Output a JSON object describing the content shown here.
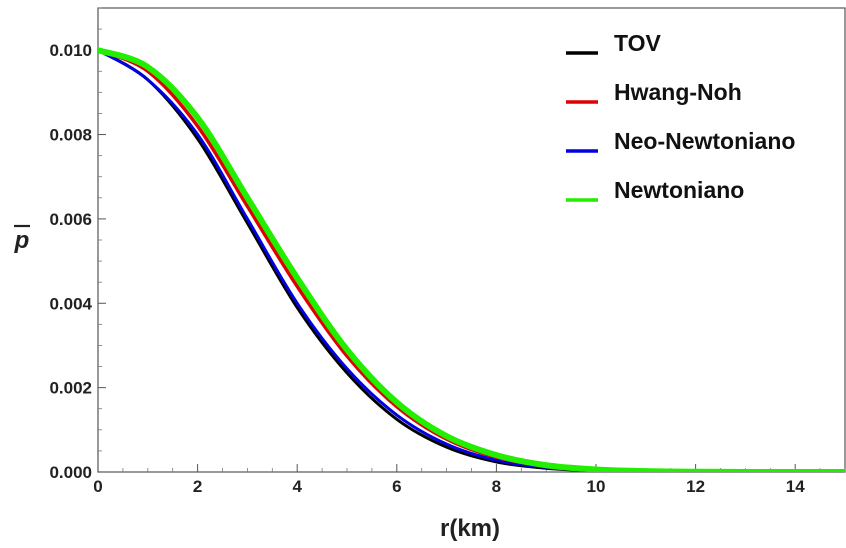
{
  "chart_data": {
    "type": "line",
    "title": "",
    "xlabel": "r(km)",
    "ylabel": "p",
    "ylabel_overbar": true,
    "xlim": [
      0,
      15
    ],
    "ylim": [
      0,
      0.011
    ],
    "x_ticks": [
      0,
      2,
      4,
      6,
      8,
      10,
      12,
      14
    ],
    "x_tick_labels": [
      "0",
      "2",
      "4",
      "6",
      "8",
      "10",
      "12",
      "14"
    ],
    "y_ticks": [
      0.0,
      0.002,
      0.004,
      0.006,
      0.008,
      0.01
    ],
    "y_tick_labels": [
      "0.000",
      "0.002",
      "0.004",
      "0.006",
      "0.008",
      "0.010"
    ],
    "grid": false,
    "legend_position": "top-right",
    "series": [
      {
        "name": "TOV",
        "color": "#000000",
        "x": [
          0,
          1,
          2,
          3,
          4,
          5,
          6,
          7,
          8,
          9,
          10,
          11,
          12,
          13,
          14,
          15
        ],
        "y": [
          0.01,
          0.0093,
          0.0079,
          0.0059,
          0.0039,
          0.00235,
          0.00125,
          0.00059,
          0.00024,
          9e-05,
          3e-05,
          1e-05,
          0.0,
          0.0,
          0.0,
          0.0
        ]
      },
      {
        "name": "Hwang-Noh",
        "color": "#e00000",
        "x": [
          0,
          1,
          2,
          3,
          4,
          5,
          6,
          7,
          8,
          9,
          10,
          11,
          12,
          13,
          14,
          15
        ],
        "y": [
          0.01,
          0.0095,
          0.0082,
          0.0063,
          0.0044,
          0.00275,
          0.00155,
          0.00078,
          0.00035,
          0.00014,
          5e-05,
          1.5e-05,
          4e-06,
          0.0,
          0.0,
          0.0
        ]
      },
      {
        "name": "Neo-Newtoniano",
        "color": "#0000e0",
        "x": [
          0,
          1,
          2,
          3,
          4,
          5,
          6,
          7,
          8,
          9,
          10,
          11,
          12,
          13,
          14,
          15
        ],
        "y": [
          0.01,
          0.0093,
          0.008,
          0.006,
          0.004,
          0.00245,
          0.00135,
          0.00066,
          0.00028,
          0.00011,
          4e-05,
          1.2e-05,
          3e-06,
          0.0,
          0.0,
          0.0
        ]
      },
      {
        "name": "Newtoniano",
        "color": "#22ee00",
        "x": [
          0,
          1,
          2,
          3,
          4,
          5,
          6,
          7,
          8,
          9,
          10,
          11,
          12,
          13,
          14,
          15
        ],
        "y": [
          0.01,
          0.0096,
          0.0084,
          0.0065,
          0.0046,
          0.0029,
          0.00165,
          0.00085,
          0.0004,
          0.00016,
          6e-05,
          2e-05,
          5e-06,
          1e-06,
          0.0,
          0.0
        ]
      }
    ]
  }
}
